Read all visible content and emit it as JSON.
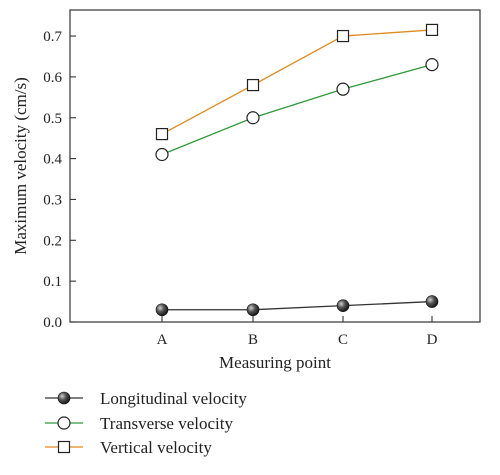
{
  "chart_data": {
    "type": "line",
    "categories": [
      "A",
      "B",
      "C",
      "D"
    ],
    "xlabel": "Measuring point",
    "ylabel": "Maximum velocity (cm/s)",
    "ylim": [
      0.0,
      0.75
    ],
    "yticks": [
      0.0,
      0.1,
      0.2,
      0.3,
      0.4,
      0.5,
      0.6,
      0.7
    ],
    "ytick_labels": [
      "0.0",
      "0.1",
      "0.2",
      "0.3",
      "0.4",
      "0.5",
      "0.6",
      "0.7"
    ],
    "grid": false,
    "legend_position": "bottom-left, below plot",
    "series": [
      {
        "name": "Longitudinal velocity",
        "values": [
          0.03,
          0.03,
          0.04,
          0.05
        ],
        "color": "#333333",
        "marker": "filled-sphere"
      },
      {
        "name": "Transverse velocity",
        "values": [
          0.41,
          0.5,
          0.57,
          0.63
        ],
        "color": "#2e9a3a",
        "marker": "open-circle"
      },
      {
        "name": "Vertical velocity",
        "values": [
          0.46,
          0.58,
          0.7,
          0.715
        ],
        "color": "#e08a1e",
        "marker": "open-square"
      }
    ]
  }
}
